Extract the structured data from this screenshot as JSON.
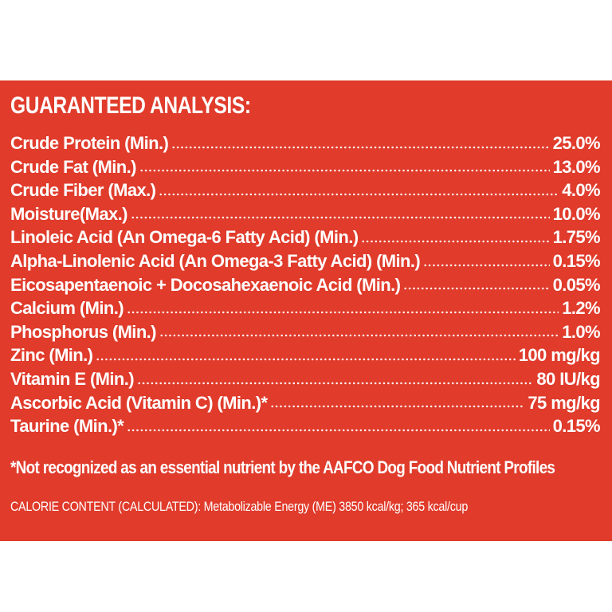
{
  "panel": {
    "background_color": "#e03b2b",
    "text_color": "#ffffff",
    "title": "GUARANTEED ANALYSIS:",
    "rows": [
      {
        "label": "Crude Protein (Min.)",
        "value": "25.0%"
      },
      {
        "label": "Crude Fat (Min.)",
        "value": "13.0%"
      },
      {
        "label": "Crude Fiber (Max.)",
        "value": "4.0%"
      },
      {
        "label": "Moisture(Max.)",
        "value": "10.0%"
      },
      {
        "label": "Linoleic Acid (An Omega-6 Fatty Acid) (Min.)",
        "value": "1.75%"
      },
      {
        "label": "Alpha-Linolenic Acid (An Omega-3 Fatty Acid) (Min.)",
        "value": "0.15%"
      },
      {
        "label": "Eicosapentaenoic + Docosahexaenoic Acid (Min.)",
        "value": "0.05%"
      },
      {
        "label": "Calcium (Min.)",
        "value": "1.2%"
      },
      {
        "label": "Phosphorus (Min.)",
        "value": "1.0%"
      },
      {
        "label": "Zinc (Min.)",
        "value": "100 mg/kg"
      },
      {
        "label": "Vitamin E (Min.)",
        "value": "80 IU/kg"
      },
      {
        "label": "Ascorbic Acid (Vitamin C) (Min.)*",
        "value": "75 mg/kg"
      },
      {
        "label": "Taurine (Min.)*",
        "value": "0.15%"
      }
    ],
    "footnote": "*Not recognized as an essential nutrient by the AAFCO Dog Food Nutrient Profiles",
    "calorie": {
      "label": "CALORIE CONTENT (CALCULATED):",
      "text": " Metabolizable Energy (ME) 3850 kcal/kg; 365 kcal/cup"
    }
  }
}
